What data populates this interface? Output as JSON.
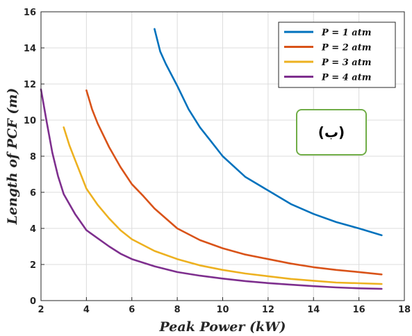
{
  "chart_data": {
    "type": "line",
    "xlabel": "Peak Power (kW)",
    "ylabel": "Length of PCF (m)",
    "xlim": [
      2,
      18
    ],
    "ylim": [
      0,
      16
    ],
    "xticks": [
      "2",
      "4",
      "6",
      "8",
      "10",
      "12",
      "14",
      "16",
      "18"
    ],
    "yticks": [
      "0",
      "2",
      "4",
      "6",
      "8",
      "10",
      "12",
      "14",
      "16"
    ],
    "grid": true,
    "legend_position": "top-right",
    "series": [
      {
        "name": "P = 1 atm",
        "color": "#0072BD",
        "x": [
          7,
          7.25,
          7.5,
          8,
          8.5,
          9,
          9.5,
          10,
          11,
          12,
          13,
          14,
          15,
          16,
          17
        ],
        "y": [
          15.05,
          13.8,
          13.1,
          11.9,
          10.6,
          9.6,
          8.8,
          8.0,
          6.85,
          6.1,
          5.35,
          4.8,
          4.35,
          4.0,
          3.62
        ]
      },
      {
        "name": "P = 2 atm",
        "color": "#D95319",
        "x": [
          4,
          4.25,
          4.5,
          5,
          5.5,
          6,
          6.5,
          7,
          8,
          9,
          10,
          11,
          12,
          13,
          14,
          15,
          16,
          17
        ],
        "y": [
          11.65,
          10.6,
          9.8,
          8.5,
          7.4,
          6.45,
          5.8,
          5.1,
          4.0,
          3.35,
          2.9,
          2.55,
          2.3,
          2.05,
          1.85,
          1.7,
          1.58,
          1.45
        ]
      },
      {
        "name": "P = 3 atm",
        "color": "#EDB120",
        "x": [
          3,
          3.25,
          3.5,
          4,
          4.5,
          5,
          5.5,
          6,
          7,
          8,
          9,
          10,
          11,
          12,
          13,
          14,
          15,
          16,
          17
        ],
        "y": [
          9.6,
          8.6,
          7.8,
          6.2,
          5.3,
          4.55,
          3.9,
          3.4,
          2.75,
          2.3,
          1.95,
          1.7,
          1.5,
          1.35,
          1.2,
          1.1,
          1.0,
          0.96,
          0.92
        ]
      },
      {
        "name": "P = 4 atm",
        "color": "#7E2F8E",
        "x": [
          2,
          2.25,
          2.5,
          2.75,
          3,
          3.5,
          4,
          4.5,
          5,
          5.5,
          6,
          7,
          8,
          9,
          10,
          11,
          12,
          13,
          14,
          15,
          16,
          17
        ],
        "y": [
          11.7,
          9.9,
          8.2,
          6.9,
          5.9,
          4.8,
          3.9,
          3.45,
          3.0,
          2.6,
          2.3,
          1.9,
          1.58,
          1.38,
          1.22,
          1.08,
          0.97,
          0.88,
          0.8,
          0.73,
          0.68,
          0.65
        ]
      }
    ],
    "annotation": {
      "text": "(ب)",
      "box_color": "#70AD47"
    }
  }
}
